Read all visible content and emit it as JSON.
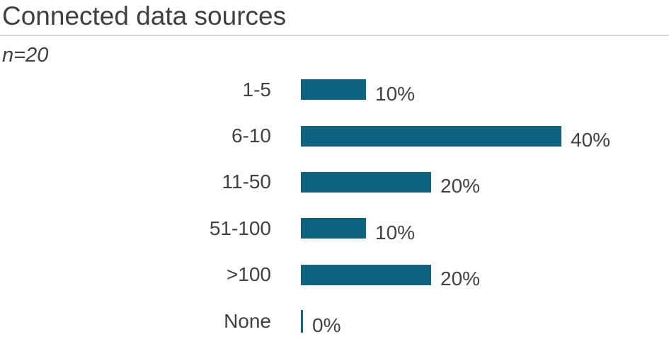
{
  "title": "Connected data sources",
  "subtitle": "n=20",
  "colors": {
    "bar": "#0e6480",
    "title_text": "#3f3f3f",
    "label_text": "#424242",
    "divider": "#d9d9d9",
    "background": "#ffffff"
  },
  "chart_data": {
    "type": "bar",
    "orientation": "horizontal",
    "title": "Connected data sources",
    "subtitle": "n=20",
    "categories": [
      "1-5",
      "6-10",
      "11-50",
      "51-100",
      ">100",
      "None"
    ],
    "values": [
      10,
      40,
      20,
      10,
      20,
      0
    ],
    "value_labels": [
      "10%",
      "40%",
      "20%",
      "10%",
      "20%",
      "0%"
    ],
    "unit": "%",
    "xlim": [
      0,
      40
    ],
    "grid": false,
    "legend": false,
    "bar_color": "#0e6480",
    "data_labels_position": "outside-end",
    "category_labels_position": "left"
  }
}
